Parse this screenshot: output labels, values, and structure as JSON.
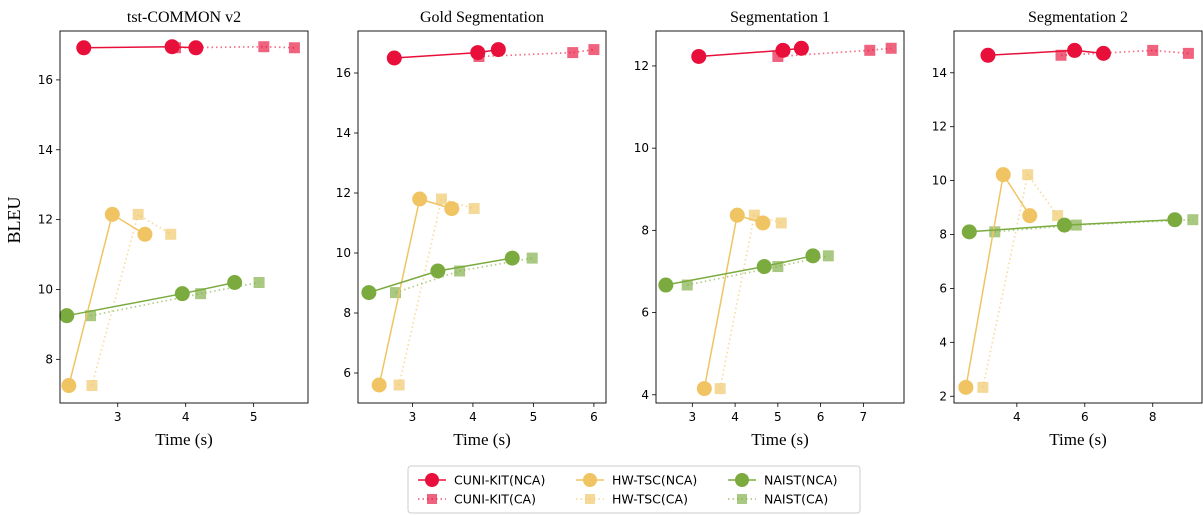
{
  "figure": {
    "ylabel": "BLEU",
    "xlabel": "Time (s)"
  },
  "colors": {
    "CUNI-KIT": "#e8103a",
    "HW-TSC": "#f0c462",
    "NAIST": "#7bab3e"
  },
  "legend": {
    "placement": "bottom-center",
    "entries": [
      {
        "label": "CUNI-KIT(NCA)",
        "system": "CUNI-KIT",
        "condition": "NCA"
      },
      {
        "label": "CUNI-KIT(CA)",
        "system": "CUNI-KIT",
        "condition": "CA"
      },
      {
        "label": "HW-TSC(NCA)",
        "system": "HW-TSC",
        "condition": "NCA"
      },
      {
        "label": "HW-TSC(CA)",
        "system": "HW-TSC",
        "condition": "CA"
      },
      {
        "label": "NAIST(NCA)",
        "system": "NAIST",
        "condition": "NCA"
      },
      {
        "label": "NAIST(CA)",
        "system": "NAIST",
        "condition": "CA"
      }
    ]
  },
  "chart_data": [
    {
      "type": "line",
      "title": "tst-COMMON v2",
      "xlabel": "Time (s)",
      "ylabel": "BLEU",
      "xlim": [
        2.15,
        5.8
      ],
      "ylim": [
        6.75,
        17.4
      ],
      "xticks": [
        3,
        4,
        5
      ],
      "yticks": [
        8,
        10,
        12,
        14,
        16
      ],
      "series": [
        {
          "name": "CUNI-KIT(NCA)",
          "x": [
            2.5,
            3.8,
            4.15
          ],
          "y": [
            16.92,
            16.95,
            16.92
          ]
        },
        {
          "name": "CUNI-KIT(CA)",
          "x": [
            3.85,
            5.15,
            5.6
          ],
          "y": [
            16.92,
            16.95,
            16.92
          ]
        },
        {
          "name": "HW-TSC(NCA)",
          "x": [
            2.28,
            2.92,
            3.4
          ],
          "y": [
            7.25,
            12.15,
            11.58
          ]
        },
        {
          "name": "HW-TSC(CA)",
          "x": [
            2.62,
            3.3,
            3.78
          ],
          "y": [
            7.25,
            12.15,
            11.58
          ]
        },
        {
          "name": "NAIST(NCA)",
          "x": [
            2.25,
            3.95,
            4.72
          ],
          "y": [
            9.25,
            9.88,
            10.2
          ]
        },
        {
          "name": "NAIST(CA)",
          "x": [
            2.6,
            4.22,
            5.08
          ],
          "y": [
            9.25,
            9.88,
            10.2
          ]
        }
      ]
    },
    {
      "type": "line",
      "title": "Gold Segmentation",
      "xlabel": "Time (s)",
      "ylabel": "",
      "xlim": [
        2.1,
        6.2
      ],
      "ylim": [
        5.0,
        17.4
      ],
      "xticks": [
        3,
        4,
        5,
        6
      ],
      "yticks": [
        6,
        8,
        10,
        12,
        14,
        16
      ],
      "series": [
        {
          "name": "CUNI-KIT(NCA)",
          "x": [
            2.7,
            4.08,
            4.42
          ],
          "y": [
            16.5,
            16.68,
            16.78
          ]
        },
        {
          "name": "CUNI-KIT(CA)",
          "x": [
            4.1,
            5.65,
            6.0
          ],
          "y": [
            16.55,
            16.68,
            16.78
          ]
        },
        {
          "name": "HW-TSC(NCA)",
          "x": [
            2.45,
            3.12,
            3.65
          ],
          "y": [
            5.6,
            11.8,
            11.48
          ]
        },
        {
          "name": "HW-TSC(CA)",
          "x": [
            2.78,
            3.48,
            4.02
          ],
          "y": [
            5.6,
            11.8,
            11.48
          ]
        },
        {
          "name": "NAIST(NCA)",
          "x": [
            2.28,
            3.42,
            4.65
          ],
          "y": [
            8.68,
            9.4,
            9.83
          ]
        },
        {
          "name": "NAIST(CA)",
          "x": [
            2.72,
            3.78,
            4.98
          ],
          "y": [
            8.68,
            9.4,
            9.83
          ]
        }
      ]
    },
    {
      "type": "line",
      "title": "Segmentation 1",
      "xlabel": "Time (s)",
      "ylabel": "",
      "xlim": [
        2.15,
        7.95
      ],
      "ylim": [
        3.8,
        12.85
      ],
      "xticks": [
        3,
        4,
        5,
        6,
        7
      ],
      "yticks": [
        4,
        6,
        8,
        10,
        12
      ],
      "series": [
        {
          "name": "CUNI-KIT(NCA)",
          "x": [
            3.15,
            5.12,
            5.55
          ],
          "y": [
            12.23,
            12.38,
            12.43
          ]
        },
        {
          "name": "CUNI-KIT(CA)",
          "x": [
            5.0,
            7.15,
            7.65
          ],
          "y": [
            12.23,
            12.38,
            12.43
          ]
        },
        {
          "name": "HW-TSC(NCA)",
          "x": [
            3.28,
            4.05,
            4.65
          ],
          "y": [
            4.15,
            8.37,
            8.18
          ]
        },
        {
          "name": "HW-TSC(CA)",
          "x": [
            3.65,
            4.45,
            5.08
          ],
          "y": [
            4.15,
            8.37,
            8.18
          ]
        },
        {
          "name": "NAIST(NCA)",
          "x": [
            2.38,
            4.68,
            5.82
          ],
          "y": [
            6.67,
            7.12,
            7.38
          ]
        },
        {
          "name": "NAIST(CA)",
          "x": [
            2.88,
            5.0,
            6.18
          ],
          "y": [
            6.67,
            7.12,
            7.38
          ]
        }
      ]
    },
    {
      "type": "line",
      "title": "Segmentation 2",
      "xlabel": "Time (s)",
      "ylabel": "",
      "xlim": [
        2.15,
        9.45
      ],
      "ylim": [
        1.75,
        15.55
      ],
      "xticks": [
        4,
        6,
        8
      ],
      "yticks": [
        2,
        4,
        6,
        8,
        10,
        12,
        14
      ],
      "series": [
        {
          "name": "CUNI-KIT(NCA)",
          "x": [
            3.15,
            5.7,
            6.55
          ],
          "y": [
            14.65,
            14.83,
            14.72
          ]
        },
        {
          "name": "CUNI-KIT(CA)",
          "x": [
            5.3,
            8.0,
            9.05
          ],
          "y": [
            14.65,
            14.83,
            14.72
          ]
        },
        {
          "name": "HW-TSC(NCA)",
          "x": [
            2.5,
            3.6,
            4.38
          ],
          "y": [
            2.33,
            10.22,
            8.7
          ]
        },
        {
          "name": "HW-TSC(CA)",
          "x": [
            3.0,
            4.32,
            5.2
          ],
          "y": [
            2.33,
            10.22,
            8.7
          ]
        },
        {
          "name": "NAIST(NCA)",
          "x": [
            2.6,
            5.4,
            8.65
          ],
          "y": [
            8.1,
            8.35,
            8.55
          ]
        },
        {
          "name": "NAIST(CA)",
          "x": [
            3.35,
            5.75,
            9.18
          ],
          "y": [
            8.1,
            8.35,
            8.55
          ]
        }
      ]
    }
  ]
}
